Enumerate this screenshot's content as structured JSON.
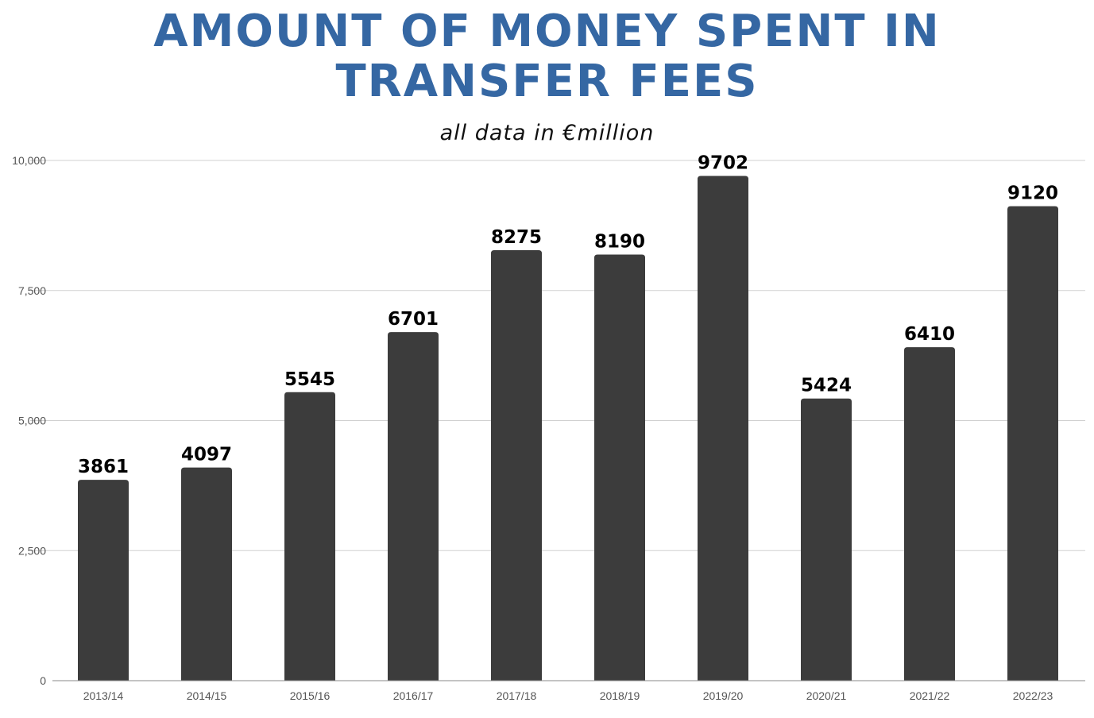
{
  "title_line1": "AMOUNT OF MONEY SPENT IN",
  "title_line2": "TRANSFER FEES",
  "subtitle": "all data in  €million",
  "colors": {
    "title": "#3567a3",
    "bar": "#3c3c3c",
    "grid": "#d0d0d0",
    "axis": "#888888"
  },
  "chart_data": {
    "type": "bar",
    "title": "AMOUNT OF MONEY SPENT IN TRANSFER FEES",
    "subtitle": "all data in  €million",
    "xlabel": "",
    "ylabel": "",
    "categories": [
      "2013/14",
      "2014/15",
      "2015/16",
      "2016/17",
      "2017/18",
      "2018/19",
      "2019/20",
      "2020/21",
      "2021/22",
      "2022/23"
    ],
    "values": [
      3861,
      4097,
      5545,
      6701,
      8275,
      8190,
      9702,
      5424,
      6410,
      9120
    ],
    "ylim": [
      0,
      10000
    ],
    "yticks": [
      0,
      2500,
      5000,
      7500,
      10000
    ],
    "ytick_labels": [
      "0",
      "2,500",
      "5,000",
      "7,500",
      "10,000"
    ],
    "grid": true,
    "legend": "none",
    "data_labels": true
  }
}
